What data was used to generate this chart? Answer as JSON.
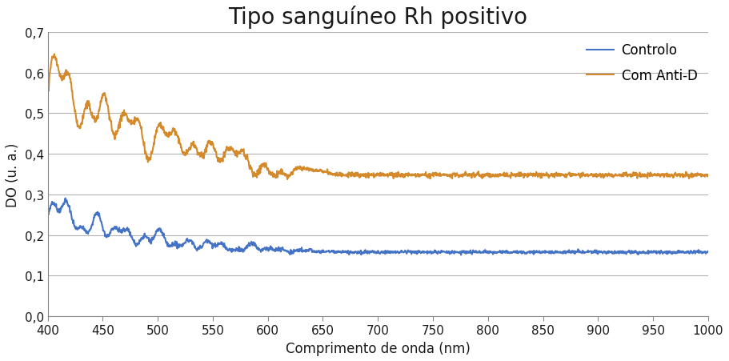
{
  "title": "Tipo sanguíneo Rh positivo",
  "xlabel": "Comprimento de onda (nm)",
  "ylabel": "DO (u. a.)",
  "xlim": [
    400,
    1000
  ],
  "ylim": [
    0.0,
    0.7
  ],
  "yticks": [
    0.0,
    0.1,
    0.2,
    0.3,
    0.4,
    0.5,
    0.6,
    0.7
  ],
  "xticks": [
    400,
    450,
    500,
    550,
    600,
    650,
    700,
    750,
    800,
    850,
    900,
    950,
    1000
  ],
  "blue_color": "#4472C4",
  "orange_color": "#D4892A",
  "legend_labels": [
    "Controlo",
    "Com Anti-D"
  ],
  "title_fontsize": 20,
  "label_fontsize": 12,
  "tick_fontsize": 11,
  "legend_fontsize": 12,
  "grid_color": "#B0B0B0",
  "background_color": "#FFFFFF",
  "line_width": 1.5
}
